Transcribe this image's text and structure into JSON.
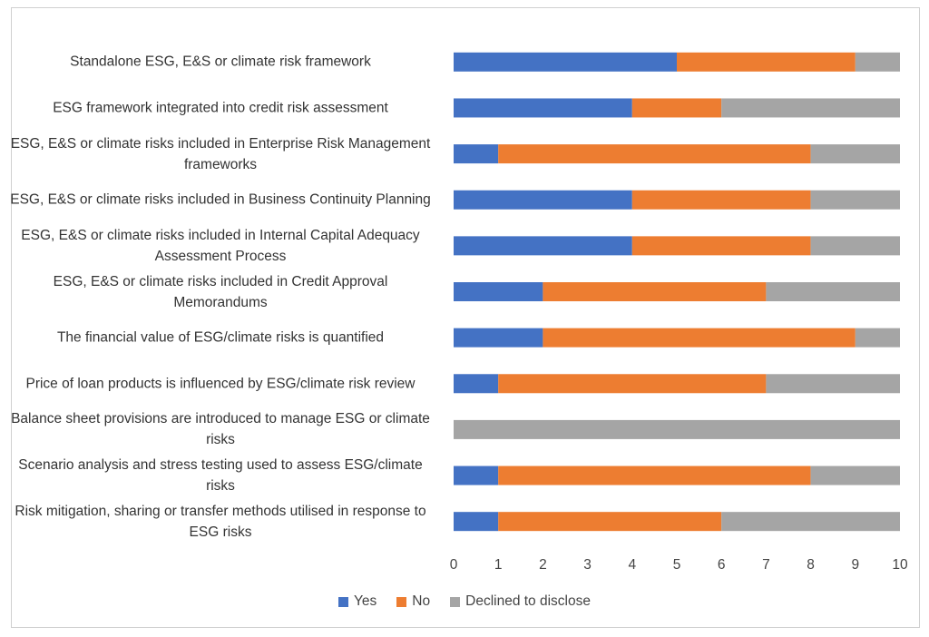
{
  "chart_data": {
    "type": "bar",
    "orientation": "horizontal",
    "stacked": true,
    "categories": [
      "Standalone ESG, E&S or climate risk framework",
      "ESG framework integrated into credit risk assessment",
      "ESG, E&S or climate risks included in Enterprise Risk Management frameworks",
      "ESG, E&S or climate risks included in Business Continuity Planning",
      "ESG, E&S or climate risks included in Internal Capital Adequacy Assessment Process",
      "ESG, E&S or climate risks included in Credit Approval Memorandums",
      "The financial value of ESG/climate risks is quantified",
      "Price of loan products is influenced by ESG/climate risk review",
      "Balance sheet provisions are introduced to manage ESG or climate risks",
      "Scenario analysis and stress testing used to assess ESG/climate risks",
      "Risk mitigation, sharing or transfer methods utilised in response to ESG risks"
    ],
    "series": [
      {
        "name": "Yes",
        "color": "#4472C4",
        "values": [
          5,
          4,
          1,
          4,
          4,
          2,
          2,
          1,
          0,
          1,
          1
        ]
      },
      {
        "name": "No",
        "color": "#ED7D31",
        "values": [
          4,
          2,
          7,
          4,
          4,
          5,
          7,
          6,
          0,
          7,
          5
        ]
      },
      {
        "name": "Declined to disclose",
        "color": "#A5A5A5",
        "values": [
          1,
          4,
          2,
          2,
          2,
          3,
          1,
          3,
          10,
          2,
          4
        ]
      }
    ],
    "xlim": [
      0,
      10
    ],
    "xticks": [
      "0",
      "1",
      "2",
      "3",
      "4",
      "5",
      "6",
      "7",
      "8",
      "9",
      "10"
    ],
    "grid": false,
    "legend_position": "bottom",
    "title": "",
    "xlabel": "",
    "ylabel": ""
  }
}
